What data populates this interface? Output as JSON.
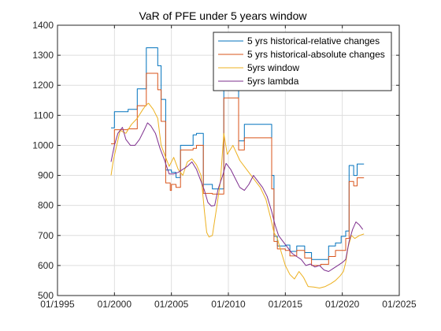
{
  "chart_data": {
    "type": "line",
    "title": "VaR of PFE under 5 years window",
    "xlabel": "",
    "ylabel": "",
    "xlim": [
      1995,
      2025
    ],
    "ylim": [
      500,
      1400
    ],
    "xticks": [
      1995,
      2000,
      2005,
      2010,
      2015,
      2020,
      2025
    ],
    "xtick_labels": [
      "01/1995",
      "01/2000",
      "01/2005",
      "01/2010",
      "01/2015",
      "01/2020",
      "01/2025"
    ],
    "yticks": [
      500,
      600,
      700,
      800,
      900,
      1000,
      1100,
      1200,
      1300,
      1400
    ],
    "ytick_labels": [
      "500",
      "600",
      "700",
      "800",
      "900",
      "1000",
      "1100",
      "1200",
      "1300",
      "1400"
    ],
    "grid": true,
    "legend_position": "top-right",
    "series": [
      {
        "name": "5 yrs historical-relative changes",
        "color": "#0072BD",
        "step": true,
        "x": [
          1999.7,
          2000.0,
          2001.2,
          2002.0,
          2002.8,
          2003.8,
          2004.1,
          2004.5,
          2005.0,
          2005.4,
          2005.8,
          2006.9,
          2007.2,
          2007.8,
          2008.6,
          2009.6,
          2010.9,
          2011.4,
          2013.5,
          2013.8,
          2014.0,
          2014.3,
          2015.0,
          2015.4,
          2016.0,
          2016.7,
          2017.3,
          2018.1,
          2018.8,
          2019.4,
          2019.9,
          2020.3,
          2020.6,
          2021.0,
          2021.3,
          2021.9
        ],
        "y": [
          1058,
          1112,
          1120,
          1188,
          1325,
          1265,
          1153,
          918,
          910,
          893,
          1000,
          1035,
          1040,
          870,
          855,
          1230,
          1015,
          1070,
          1070,
          900,
          697,
          665,
          668,
          647,
          665,
          643,
          620,
          620,
          665,
          675,
          697,
          715,
          933,
          900,
          938,
          938
        ]
      },
      {
        "name": "5 yrs historical-absolute changes",
        "color": "#D95319",
        "step": true,
        "x": [
          1999.7,
          2000.0,
          2001.2,
          2002.0,
          2002.8,
          2003.8,
          2004.1,
          2004.5,
          2004.9,
          2005.0,
          2005.4,
          2005.8,
          2006.9,
          2007.2,
          2007.8,
          2008.6,
          2009.6,
          2010.9,
          2011.4,
          2013.5,
          2013.8,
          2014.0,
          2014.3,
          2015.0,
          2015.4,
          2016.0,
          2016.7,
          2017.3,
          2018.1,
          2018.8,
          2019.4,
          2019.9,
          2020.3,
          2020.6,
          2021.0,
          2021.3,
          2021.9
        ],
        "y": [
          1005,
          1052,
          1055,
          1132,
          1240,
          1185,
          1080,
          875,
          850,
          870,
          860,
          985,
          990,
          1000,
          840,
          838,
          1158,
          985,
          1025,
          1025,
          855,
          680,
          655,
          650,
          632,
          650,
          625,
          600,
          604,
          630,
          650,
          650,
          690,
          880,
          865,
          892,
          892
        ]
      },
      {
        "name": "5yrs window",
        "color": "#EDB120",
        "step": false,
        "x": [
          1999.7,
          1999.9,
          2000.2,
          2000.5,
          2001.0,
          2001.5,
          2002.0,
          2002.5,
          2002.8,
          2003.0,
          2003.4,
          2003.8,
          2004.1,
          2004.5,
          2004.8,
          2005.2,
          2005.6,
          2006.0,
          2006.4,
          2006.8,
          2007.2,
          2007.6,
          2007.9,
          2008.1,
          2008.3,
          2008.6,
          2009.0,
          2009.3,
          2009.6,
          2009.9,
          2010.4,
          2011.0,
          2011.6,
          2012.2,
          2012.8,
          2013.3,
          2013.7,
          2014.0,
          2014.3,
          2014.6,
          2015.0,
          2015.4,
          2015.8,
          2016.2,
          2016.6,
          2017.0,
          2017.5,
          2018.0,
          2018.5,
          2019.0,
          2019.4,
          2019.8,
          2020.1,
          2020.3,
          2020.5,
          2020.8,
          2021.1,
          2021.5,
          2021.9
        ],
        "y": [
          900,
          950,
          1000,
          1050,
          1040,
          1070,
          1090,
          1120,
          1135,
          1140,
          1120,
          1090,
          1000,
          960,
          930,
          960,
          920,
          900,
          945,
          955,
          935,
          900,
          780,
          710,
          695,
          700,
          800,
          880,
          1040,
          970,
          1000,
          950,
          920,
          890,
          860,
          820,
          760,
          710,
          690,
          650,
          600,
          570,
          555,
          580,
          560,
          530,
          528,
          525,
          530,
          540,
          550,
          565,
          580,
          610,
          660,
          700,
          690,
          700,
          705
        ]
      },
      {
        "name": "5yrs lambda",
        "color": "#7E2F8E",
        "step": false,
        "x": [
          1999.7,
          2000.0,
          2000.3,
          2000.7,
          2001.0,
          2001.4,
          2001.8,
          2002.2,
          2002.6,
          2002.9,
          2003.2,
          2003.6,
          2004.0,
          2004.4,
          2004.8,
          2005.2,
          2005.6,
          2006.0,
          2006.4,
          2006.8,
          2007.2,
          2007.6,
          2007.9,
          2008.2,
          2008.5,
          2008.8,
          2009.1,
          2009.5,
          2009.8,
          2010.2,
          2010.6,
          2011.0,
          2011.4,
          2011.8,
          2012.2,
          2012.6,
          2013.0,
          2013.4,
          2013.8,
          2014.1,
          2014.4,
          2014.8,
          2015.2,
          2015.6,
          2016.0,
          2016.4,
          2016.8,
          2017.2,
          2017.6,
          2018.0,
          2018.4,
          2018.8,
          2019.2,
          2019.6,
          2020.0,
          2020.3,
          2020.6,
          2020.9,
          2021.2,
          2021.5,
          2021.8
        ],
        "y": [
          945,
          1000,
          1040,
          1060,
          1020,
          1000,
          1000,
          1020,
          1050,
          1075,
          1065,
          1040,
          990,
          950,
          905,
          905,
          910,
          920,
          930,
          945,
          920,
          880,
          850,
          810,
          798,
          800,
          855,
          900,
          940,
          920,
          890,
          860,
          850,
          870,
          900,
          880,
          860,
          830,
          780,
          735,
          700,
          680,
          660,
          640,
          630,
          620,
          600,
          605,
          595,
          600,
          585,
          580,
          590,
          600,
          610,
          620,
          680,
          720,
          745,
          735,
          720
        ]
      }
    ]
  }
}
